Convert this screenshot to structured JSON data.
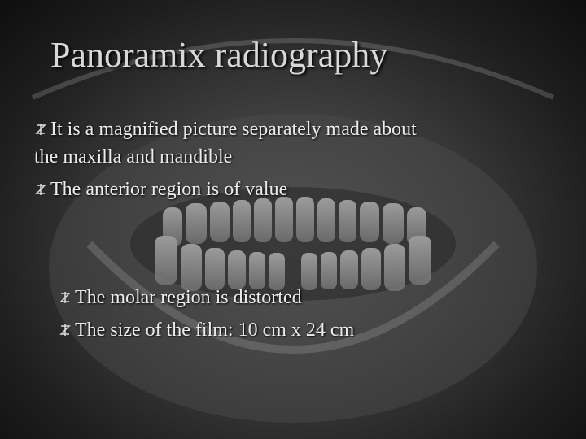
{
  "title": "Panoramix radiography",
  "bullets": [
    "It is a magnified picture separately made about the maxilla and mandible",
    "The anterior region is of value"
  ],
  "sub_bullets": [
    "The molar region is distorted",
    "The size of the film: 10 cm x 24 cm"
  ]
}
